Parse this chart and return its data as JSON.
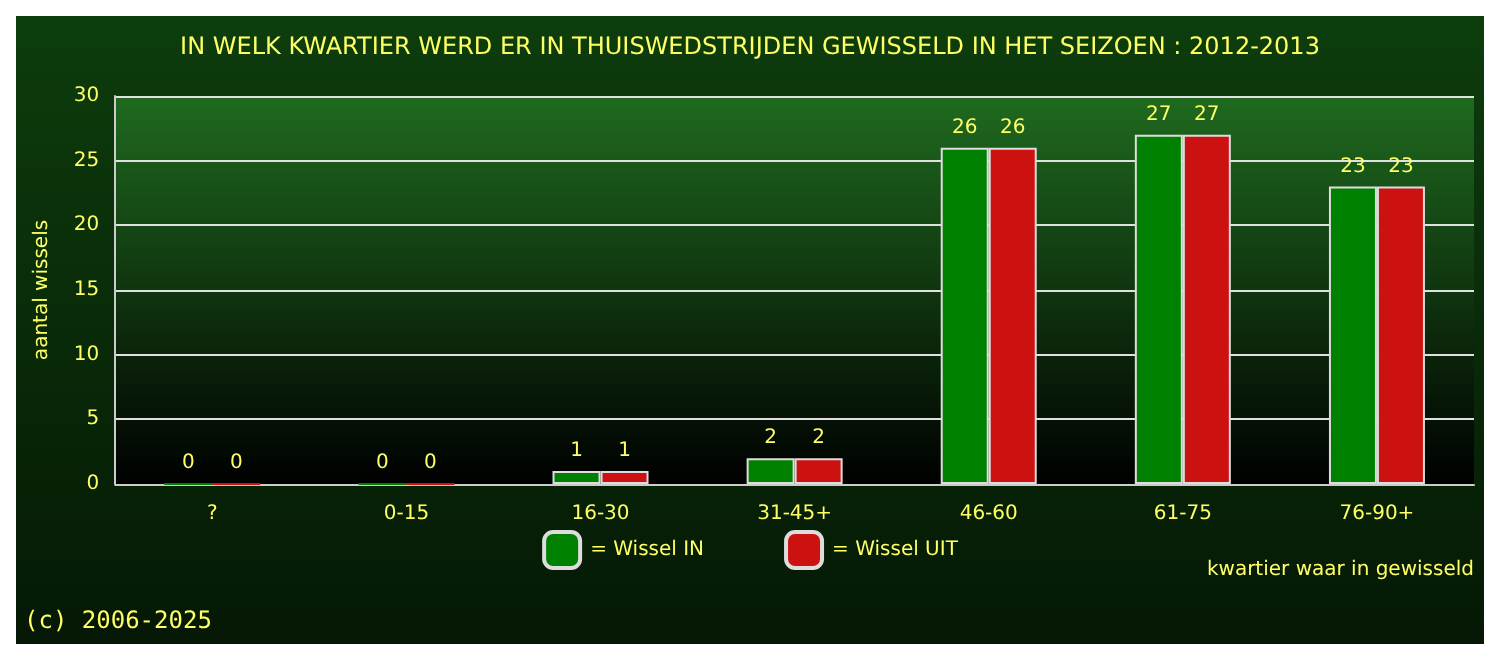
{
  "chart_data": {
    "type": "bar",
    "title": "IN WELK KWARTIER WERD ER IN THUISWEDSTRIJDEN GEWISSELD IN HET SEIZOEN : 2012-2013",
    "xlabel": "kwartier waar in gewisseld",
    "ylabel": "aantal wissels",
    "categories": [
      "?",
      "0-15",
      "16-30",
      "31-45+",
      "46-60",
      "61-75",
      "76-90+"
    ],
    "series": [
      {
        "name": "= Wissel IN",
        "color": "#008000",
        "values": [
          0,
          0,
          1,
          2,
          26,
          27,
          23
        ]
      },
      {
        "name": "= Wissel UIT",
        "color": "#cc1111",
        "values": [
          0,
          0,
          1,
          2,
          26,
          27,
          23
        ]
      }
    ],
    "ylim": [
      0,
      30
    ],
    "yticks": [
      0,
      5,
      10,
      15,
      20,
      25,
      30
    ],
    "grid": "y",
    "legend": "bottom",
    "data_labels": true,
    "annotations": [
      "(c) 2006-2025"
    ]
  }
}
